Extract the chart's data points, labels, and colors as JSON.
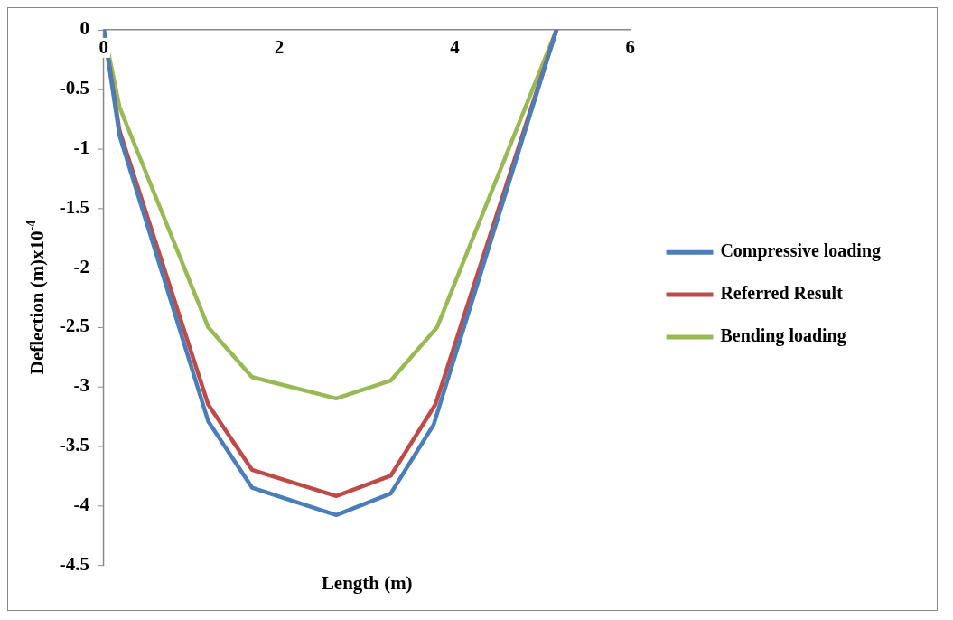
{
  "chart_data": {
    "type": "line",
    "xlabel": "Length (m)",
    "ylabel": "Deflection (m)x10$^{-4}$",
    "series": [
      {
        "name": "Compressive loading",
        "color": "#4a7ebb",
        "x": [
          0,
          0.18,
          1.19,
          1.69,
          2.65,
          3.27,
          3.76,
          5.16
        ],
        "values": [
          0,
          -0.89,
          -3.29,
          -3.85,
          -4.08,
          -3.9,
          -3.32,
          0
        ]
      },
      {
        "name": "Referred Result",
        "color": "#be4b48",
        "x": [
          0,
          0.18,
          1.19,
          1.69,
          2.65,
          3.27,
          3.78,
          5.16
        ],
        "values": [
          0,
          -0.85,
          -3.15,
          -3.7,
          -3.92,
          -3.75,
          -3.15,
          0
        ]
      },
      {
        "name": "Bending loading",
        "color": "#98b954",
        "x": [
          0,
          0.18,
          1.19,
          1.69,
          2.65,
          3.27,
          3.8,
          5.16
        ],
        "values": [
          0,
          -0.65,
          -2.5,
          -2.92,
          -3.1,
          -2.95,
          -2.5,
          0
        ]
      }
    ],
    "xlim": [
      0,
      6
    ],
    "xticks": [
      0,
      2,
      4,
      6
    ],
    "ylim": [
      -4.5,
      0
    ],
    "yticks": [
      -4.5,
      -4,
      -3.5,
      -3,
      -2.5,
      -2,
      -1.5,
      -1,
      -0.5,
      0
    ],
    "grid": false,
    "legend": "right",
    "marker": "none",
    "line_style": "solid"
  }
}
